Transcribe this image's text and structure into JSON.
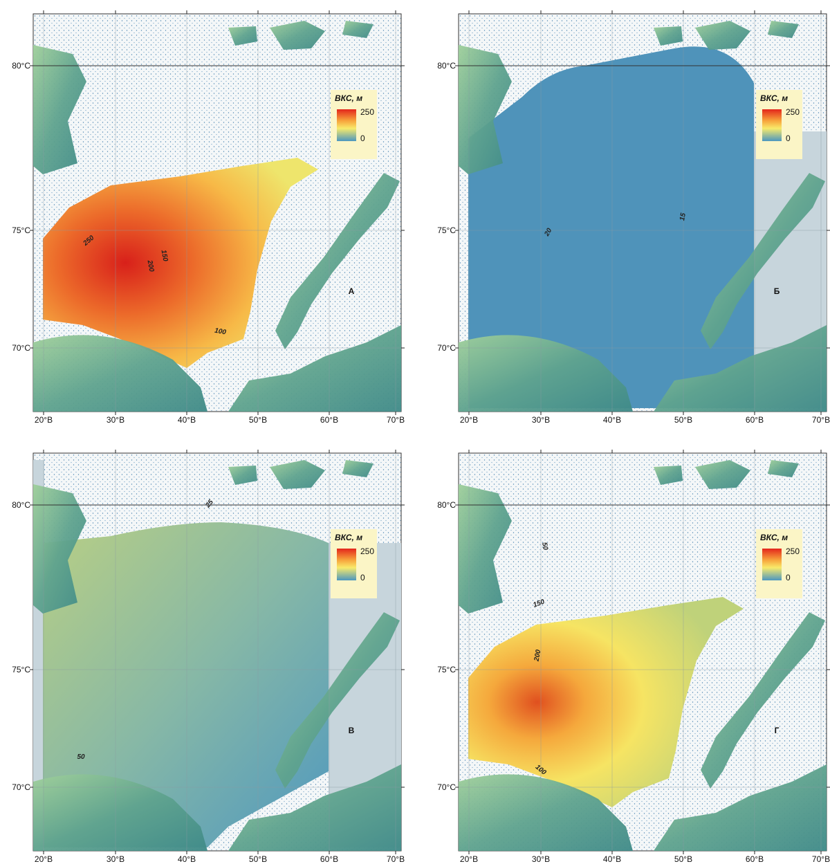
{
  "axes": {
    "lat_labels": [
      "80°С",
      "75°С",
      "70°С"
    ],
    "lon_labels": [
      "20°В",
      "30°В",
      "40°В",
      "50°В",
      "60°В",
      "70°В"
    ]
  },
  "legend": {
    "title": "ВКС, м",
    "max": "250",
    "min": "0"
  },
  "panels": [
    {
      "letter": "А",
      "contours": [
        "250",
        "200",
        "150",
        "100"
      ]
    },
    {
      "letter": "Б",
      "contours": [
        "20",
        "15"
      ]
    },
    {
      "letter": "В",
      "contours": [
        "25",
        "50"
      ]
    },
    {
      "letter": "Г",
      "contours": [
        "50",
        "150",
        "200",
        "100"
      ]
    }
  ]
}
